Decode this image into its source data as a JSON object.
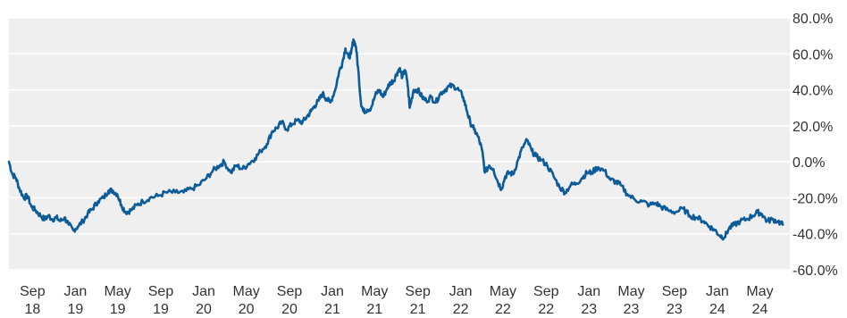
{
  "chart_data": {
    "type": "line",
    "title": "",
    "xlabel": "",
    "ylabel": "",
    "ylim": [
      -60,
      80
    ],
    "grid": true,
    "y_ticks": [
      {
        "value": 80,
        "label": "80.0%"
      },
      {
        "value": 60,
        "label": "60.0%"
      },
      {
        "value": 40,
        "label": "40.0%"
      },
      {
        "value": 20,
        "label": "20.0%"
      },
      {
        "value": 0,
        "label": "0.0%"
      },
      {
        "value": -20,
        "label": "-20.0%"
      },
      {
        "value": -40,
        "label": "-40.0%"
      },
      {
        "value": -60,
        "label": "-60.0%"
      }
    ],
    "x_ticks": [
      {
        "date": "2018-09-01",
        "month": "Sep",
        "year": "18"
      },
      {
        "date": "2019-01-01",
        "month": "Jan",
        "year": "19"
      },
      {
        "date": "2019-05-01",
        "month": "May",
        "year": "19"
      },
      {
        "date": "2019-09-01",
        "month": "Sep",
        "year": "19"
      },
      {
        "date": "2020-01-01",
        "month": "Jan",
        "year": "20"
      },
      {
        "date": "2020-05-01",
        "month": "May",
        "year": "20"
      },
      {
        "date": "2020-09-01",
        "month": "Sep",
        "year": "20"
      },
      {
        "date": "2021-01-01",
        "month": "Jan",
        "year": "21"
      },
      {
        "date": "2021-05-01",
        "month": "May",
        "year": "21"
      },
      {
        "date": "2021-09-01",
        "month": "Sep",
        "year": "21"
      },
      {
        "date": "2022-01-01",
        "month": "Jan",
        "year": "22"
      },
      {
        "date": "2022-05-01",
        "month": "May",
        "year": "22"
      },
      {
        "date": "2022-09-01",
        "month": "Sep",
        "year": "22"
      },
      {
        "date": "2023-01-01",
        "month": "Jan",
        "year": "23"
      },
      {
        "date": "2023-05-01",
        "month": "May",
        "year": "23"
      },
      {
        "date": "2023-09-01",
        "month": "Sep",
        "year": "23"
      },
      {
        "date": "2024-01-01",
        "month": "Jan",
        "year": "24"
      },
      {
        "date": "2024-05-01",
        "month": "May",
        "year": "24"
      }
    ],
    "xlim": [
      "2018-06-26",
      "2024-07-25"
    ],
    "series": [
      {
        "color": "#0d5c99",
        "points": [
          [
            "2018-06-26",
            0
          ],
          [
            "2018-07-06",
            -7
          ],
          [
            "2018-07-16",
            -9
          ],
          [
            "2018-07-26",
            -15
          ],
          [
            "2018-08-07",
            -20
          ],
          [
            "2018-08-18",
            -19
          ],
          [
            "2018-08-29",
            -25
          ],
          [
            "2018-09-10",
            -27
          ],
          [
            "2018-09-24",
            -30
          ],
          [
            "2018-10-06",
            -32
          ],
          [
            "2018-10-16",
            -30
          ],
          [
            "2018-10-28",
            -32
          ],
          [
            "2018-11-08",
            -31
          ],
          [
            "2018-11-19",
            -33
          ],
          [
            "2018-12-01",
            -31
          ],
          [
            "2018-12-13",
            -35
          ],
          [
            "2018-12-26",
            -38
          ],
          [
            "2019-01-08",
            -36
          ],
          [
            "2019-01-22",
            -33
          ],
          [
            "2019-02-05",
            -29
          ],
          [
            "2019-02-19",
            -26
          ],
          [
            "2019-03-06",
            -22
          ],
          [
            "2019-03-22",
            -20
          ],
          [
            "2019-04-05",
            -16
          ],
          [
            "2019-04-17",
            -16
          ],
          [
            "2019-04-30",
            -18
          ],
          [
            "2019-05-12",
            -24
          ],
          [
            "2019-05-24",
            -28
          ],
          [
            "2019-06-08",
            -27
          ],
          [
            "2019-06-25",
            -24
          ],
          [
            "2019-07-12",
            -22
          ],
          [
            "2019-08-01",
            -20
          ],
          [
            "2019-08-24",
            -19
          ],
          [
            "2019-09-16",
            -17
          ],
          [
            "2019-10-12",
            -17
          ],
          [
            "2019-11-05",
            -17
          ],
          [
            "2019-11-27",
            -15
          ],
          [
            "2019-12-18",
            -13
          ],
          [
            "2020-01-09",
            -9
          ],
          [
            "2020-01-27",
            -5
          ],
          [
            "2020-02-15",
            -2
          ],
          [
            "2020-02-28",
            0
          ],
          [
            "2020-03-18",
            -6
          ],
          [
            "2020-04-03",
            -2
          ],
          [
            "2020-04-20",
            -4
          ],
          [
            "2020-05-08",
            -1
          ],
          [
            "2020-05-26",
            2
          ],
          [
            "2020-06-11",
            6
          ],
          [
            "2020-06-29",
            10
          ],
          [
            "2020-07-14",
            17
          ],
          [
            "2020-07-28",
            19
          ],
          [
            "2020-08-10",
            22
          ],
          [
            "2020-08-25",
            18
          ],
          [
            "2020-09-08",
            21
          ],
          [
            "2020-09-23",
            23
          ],
          [
            "2020-10-08",
            22
          ],
          [
            "2020-10-20",
            25
          ],
          [
            "2020-11-01",
            28
          ],
          [
            "2020-11-11",
            31
          ],
          [
            "2020-11-23",
            34
          ],
          [
            "2020-12-04",
            38
          ],
          [
            "2020-12-15",
            35
          ],
          [
            "2020-12-26",
            33
          ],
          [
            "2021-01-09",
            40
          ],
          [
            "2021-01-20",
            50
          ],
          [
            "2021-01-29",
            55
          ],
          [
            "2021-02-07",
            63
          ],
          [
            "2021-02-16",
            58
          ],
          [
            "2021-02-23",
            60
          ],
          [
            "2021-03-02",
            68
          ],
          [
            "2021-03-09",
            64
          ],
          [
            "2021-03-16",
            50
          ],
          [
            "2021-03-23",
            33
          ],
          [
            "2021-03-30",
            28
          ],
          [
            "2021-04-10",
            29
          ],
          [
            "2021-04-21",
            30
          ],
          [
            "2021-05-03",
            37
          ],
          [
            "2021-05-14",
            40
          ],
          [
            "2021-05-25",
            36
          ],
          [
            "2021-06-06",
            41
          ],
          [
            "2021-06-15",
            44
          ],
          [
            "2021-06-24",
            45
          ],
          [
            "2021-07-03",
            49
          ],
          [
            "2021-07-11",
            52
          ],
          [
            "2021-07-19",
            47
          ],
          [
            "2021-07-26",
            51
          ],
          [
            "2021-08-02",
            45
          ],
          [
            "2021-08-09",
            30
          ],
          [
            "2021-08-20",
            40
          ],
          [
            "2021-09-01",
            40
          ],
          [
            "2021-09-13",
            36
          ],
          [
            "2021-09-25",
            34
          ],
          [
            "2021-10-09",
            36
          ],
          [
            "2021-10-22",
            33
          ],
          [
            "2021-11-04",
            38
          ],
          [
            "2021-11-17",
            40
          ],
          [
            "2021-11-30",
            42
          ],
          [
            "2021-12-13",
            42
          ],
          [
            "2021-12-26",
            40
          ],
          [
            "2022-01-08",
            36
          ],
          [
            "2022-01-19",
            28
          ],
          [
            "2022-01-28",
            22
          ],
          [
            "2022-02-08",
            18
          ],
          [
            "2022-02-19",
            14
          ],
          [
            "2022-03-02",
            7
          ],
          [
            "2022-03-11",
            -6
          ],
          [
            "2022-03-23",
            -2
          ],
          [
            "2022-04-04",
            -4
          ],
          [
            "2022-04-16",
            -11
          ],
          [
            "2022-04-27",
            -15
          ],
          [
            "2022-05-08",
            -8
          ],
          [
            "2022-05-19",
            -6
          ],
          [
            "2022-05-30",
            -7
          ],
          [
            "2022-06-13",
            1
          ],
          [
            "2022-06-26",
            8
          ],
          [
            "2022-07-09",
            12
          ],
          [
            "2022-07-22",
            6
          ],
          [
            "2022-08-04",
            3
          ],
          [
            "2022-08-18",
            1
          ],
          [
            "2022-09-04",
            -2
          ],
          [
            "2022-09-22",
            -8
          ],
          [
            "2022-10-09",
            -14
          ],
          [
            "2022-10-25",
            -17
          ],
          [
            "2022-11-10",
            -13
          ],
          [
            "2022-11-26",
            -12
          ],
          [
            "2022-12-12",
            -9
          ],
          [
            "2022-12-26",
            -6
          ],
          [
            "2023-01-08",
            -6
          ],
          [
            "2023-01-27",
            -3
          ],
          [
            "2023-02-14",
            -5
          ],
          [
            "2023-03-03",
            -10
          ],
          [
            "2023-03-17",
            -11
          ],
          [
            "2023-04-01",
            -13
          ],
          [
            "2023-04-20",
            -18
          ],
          [
            "2023-05-11",
            -21
          ],
          [
            "2023-06-01",
            -22
          ],
          [
            "2023-06-22",
            -24
          ],
          [
            "2023-07-10",
            -23
          ],
          [
            "2023-07-25",
            -25
          ],
          [
            "2023-08-14",
            -27
          ],
          [
            "2023-09-04",
            -28
          ],
          [
            "2023-09-25",
            -26
          ],
          [
            "2023-10-15",
            -30
          ],
          [
            "2023-11-04",
            -31
          ],
          [
            "2023-11-23",
            -33
          ],
          [
            "2023-12-10",
            -36
          ],
          [
            "2023-12-25",
            -38
          ],
          [
            "2024-01-08",
            -41
          ],
          [
            "2024-01-21",
            -42
          ],
          [
            "2024-02-03",
            -37
          ],
          [
            "2024-02-18",
            -35
          ],
          [
            "2024-03-06",
            -33
          ],
          [
            "2024-03-23",
            -32
          ],
          [
            "2024-04-10",
            -30
          ],
          [
            "2024-04-24",
            -28
          ],
          [
            "2024-05-07",
            -29
          ],
          [
            "2024-05-21",
            -33
          ],
          [
            "2024-06-05",
            -32
          ],
          [
            "2024-06-21",
            -33
          ],
          [
            "2024-07-05",
            -35
          ]
        ]
      }
    ]
  }
}
